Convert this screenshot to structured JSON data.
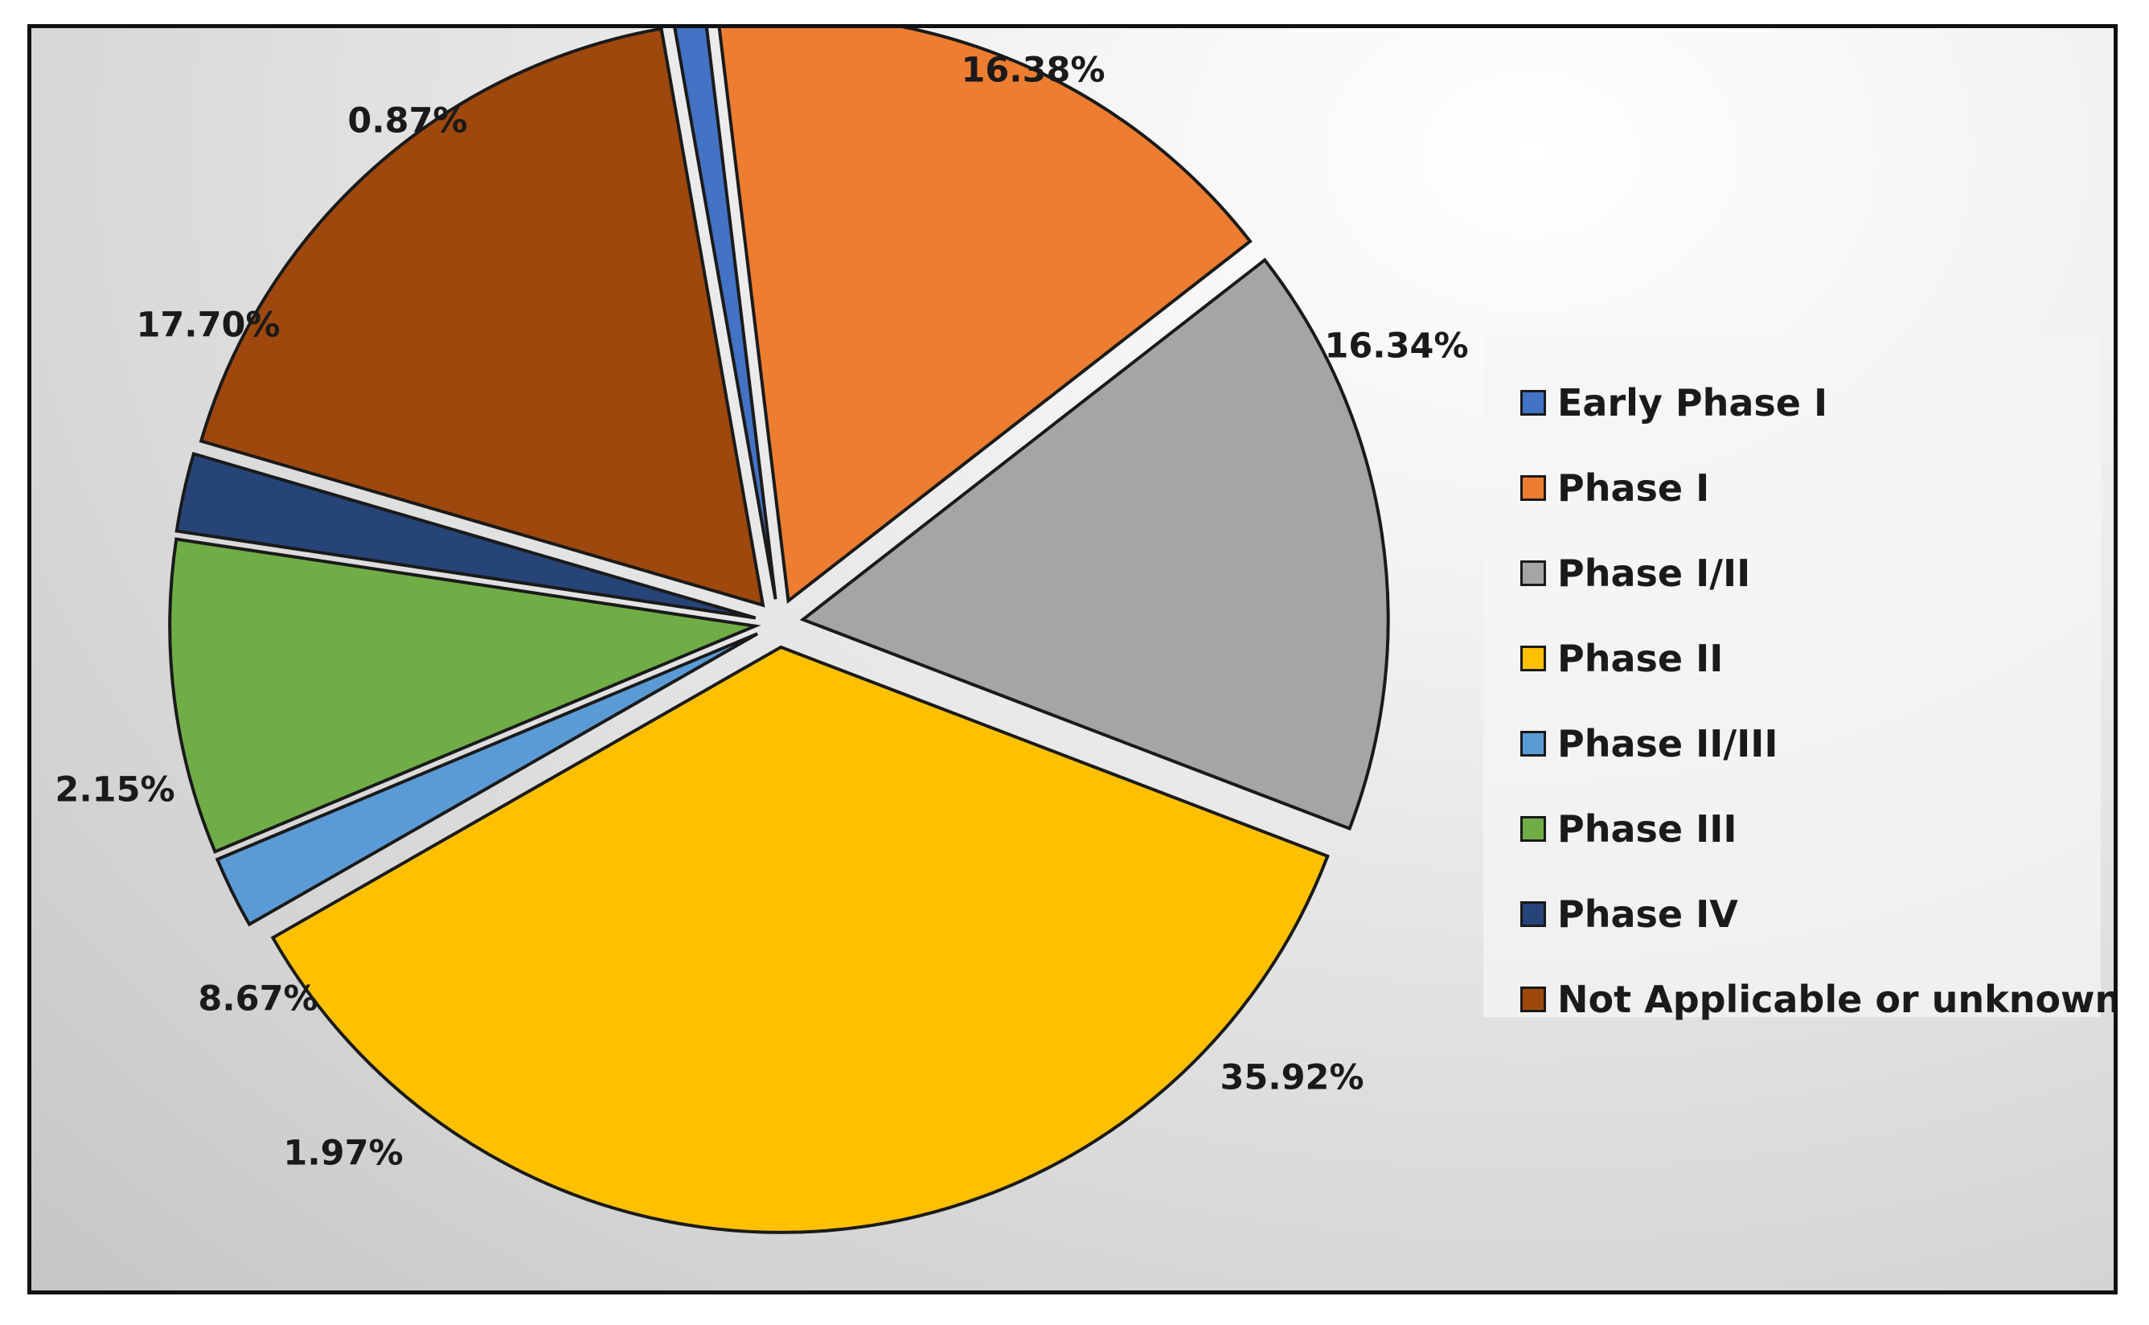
{
  "chart_data": {
    "type": "pie",
    "title": "",
    "legend_position": "right",
    "slices": [
      {
        "label": "Early Phase I",
        "value": 0.87,
        "display": "0.87%",
        "color": "#4472C4"
      },
      {
        "label": "Phase I",
        "value": 16.38,
        "display": "16.38%",
        "color": "#ED7D31"
      },
      {
        "label": "Phase I/II",
        "value": 16.34,
        "display": "16.34%",
        "color": "#A5A5A5"
      },
      {
        "label": "Phase II",
        "value": 35.92,
        "display": "35.92%",
        "color": "#FFC000"
      },
      {
        "label": "Phase II/III",
        "value": 1.97,
        "display": "1.97%",
        "color": "#5B9BD5"
      },
      {
        "label": "Phase III",
        "value": 8.67,
        "display": "8.67%",
        "color": "#70AD47"
      },
      {
        "label": "Phase IV",
        "value": 2.15,
        "display": "2.15%",
        "color": "#264478"
      },
      {
        "label": "Not Applicable or unknown",
        "value": 17.7,
        "display": "17.70%",
        "color": "#9E480E"
      }
    ]
  }
}
